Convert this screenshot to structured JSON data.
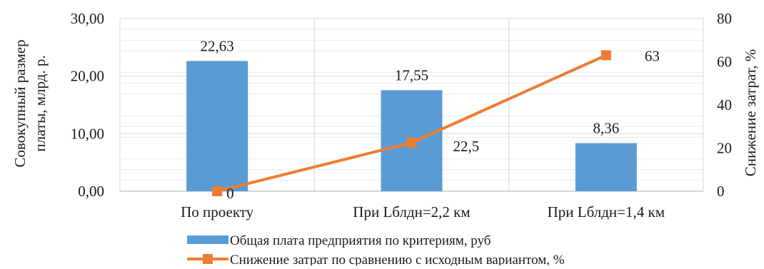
{
  "chart_data": {
    "type": "bar+line",
    "categories": [
      "По проекту",
      "При Lблдн=2,2 км",
      "При Lблдн=1,4 км"
    ],
    "series": [
      {
        "name": "Общая плата предприятия по критериям, руб",
        "type": "bar",
        "axis": "left",
        "color": "#5b9bd5",
        "values": [
          22.63,
          17.55,
          8.36
        ],
        "labels": [
          "22,63",
          "17,55",
          "8,36"
        ]
      },
      {
        "name": "Снижение затрат по сравнению с исходным вариантом, %",
        "type": "line",
        "axis": "right",
        "color": "#ed7d31",
        "marker": "square",
        "values": [
          0,
          22.5,
          63
        ],
        "labels": [
          "0",
          "22,5",
          "63"
        ]
      }
    ],
    "ylabel_left_line1": "Совокупный размер",
    "ylabel_left_line2": "платы, млрд. р.",
    "ylabel_right": "Снижение затрат, %",
    "ylim_left": [
      0,
      30
    ],
    "ylim_right": [
      0,
      80
    ],
    "yticks_left": [
      {
        "value": 0,
        "label": "0,00"
      },
      {
        "value": 10,
        "label": "10,00"
      },
      {
        "value": 20,
        "label": "20,00"
      },
      {
        "value": 30,
        "label": "30,00"
      }
    ],
    "yticks_right": [
      {
        "value": 0,
        "label": "0"
      },
      {
        "value": 20,
        "label": "20"
      },
      {
        "value": 40,
        "label": "40"
      },
      {
        "value": 60,
        "label": "60"
      },
      {
        "value": 80,
        "label": "80"
      }
    ],
    "grid": true,
    "legend_position": "bottom"
  }
}
